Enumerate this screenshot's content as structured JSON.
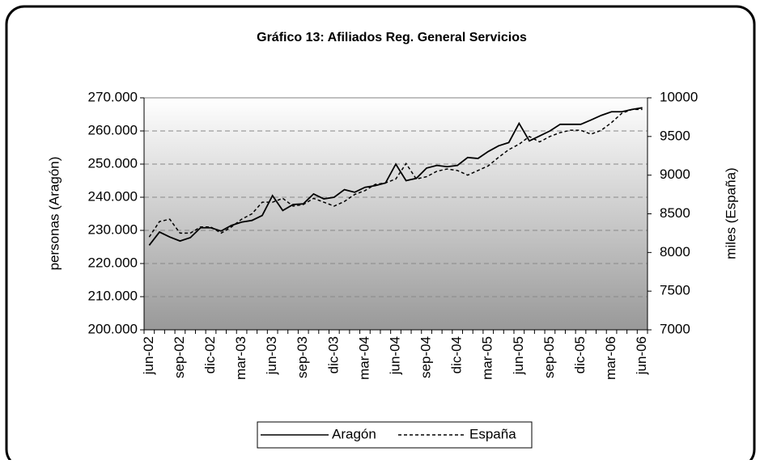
{
  "chart_data": {
    "type": "line",
    "title": "Gráfico 13: Afiliados Reg. General Servicios",
    "ylabel": "personas (Aragón)",
    "y2label": "miles (España)",
    "categories": [
      "jun-02",
      null,
      null,
      "sep-02",
      null,
      null,
      "dic-02",
      null,
      null,
      "mar-03",
      null,
      null,
      "jun-03",
      null,
      null,
      "sep-03",
      null,
      null,
      "dic-03",
      null,
      null,
      "mar-04",
      null,
      null,
      "jun-04",
      null,
      null,
      "sep-04",
      null,
      null,
      "dic-04",
      null,
      null,
      "mar-05",
      null,
      null,
      "jun-05",
      null,
      null,
      "sep-05",
      null,
      null,
      "dic-05",
      null,
      null,
      "mar-06",
      null,
      null,
      "jun-06"
    ],
    "series": [
      {
        "name": "Aragón",
        "color": "#000000",
        "dash": "solid",
        "values": [
          225500,
          229500,
          228000,
          226800,
          227800,
          230800,
          230800,
          229800,
          231500,
          232500,
          233000,
          234500,
          240500,
          236000,
          237800,
          238000,
          241000,
          239500,
          240000,
          242300,
          241500,
          243000,
          243500,
          244300,
          250000,
          245000,
          245700,
          248800,
          249600,
          249200,
          249600,
          252000,
          251700,
          253800,
          255500,
          256500,
          262300,
          257000,
          258500,
          260000,
          262000,
          262000,
          262000,
          263300,
          264700,
          265800,
          265800,
          266500,
          267000
        ]
      },
      {
        "name": "España",
        "color": "#000000",
        "dash": "dashed",
        "axis": "y2",
        "values": [
          8200,
          8400,
          8430,
          8250,
          8250,
          8330,
          8330,
          8250,
          8330,
          8430,
          8500,
          8650,
          8650,
          8700,
          8600,
          8620,
          8700,
          8650,
          8600,
          8660,
          8750,
          8800,
          8880,
          8900,
          8950,
          9150,
          8950,
          8980,
          9050,
          9080,
          9060,
          9000,
          9060,
          9120,
          9230,
          9330,
          9400,
          9500,
          9430,
          9500,
          9550,
          9580,
          9580,
          9530,
          9580,
          9680,
          9800,
          9850,
          9850
        ]
      }
    ],
    "ylim": [
      200000,
      270000
    ],
    "yticks": [
      {
        "value": 200000,
        "label": "200.000"
      },
      {
        "value": 210000,
        "label": "210.000"
      },
      {
        "value": 220000,
        "label": "220.000"
      },
      {
        "value": 230000,
        "label": "230.000"
      },
      {
        "value": 240000,
        "label": "240.000"
      },
      {
        "value": 250000,
        "label": "250.000"
      },
      {
        "value": 260000,
        "label": "260.000"
      },
      {
        "value": 270000,
        "label": "270.000"
      }
    ],
    "y2lim": [
      7000,
      10000
    ],
    "y2ticks": [
      7000,
      7500,
      8000,
      8500,
      9000,
      9500,
      10000
    ],
    "grid": true,
    "legend": "bottom"
  }
}
